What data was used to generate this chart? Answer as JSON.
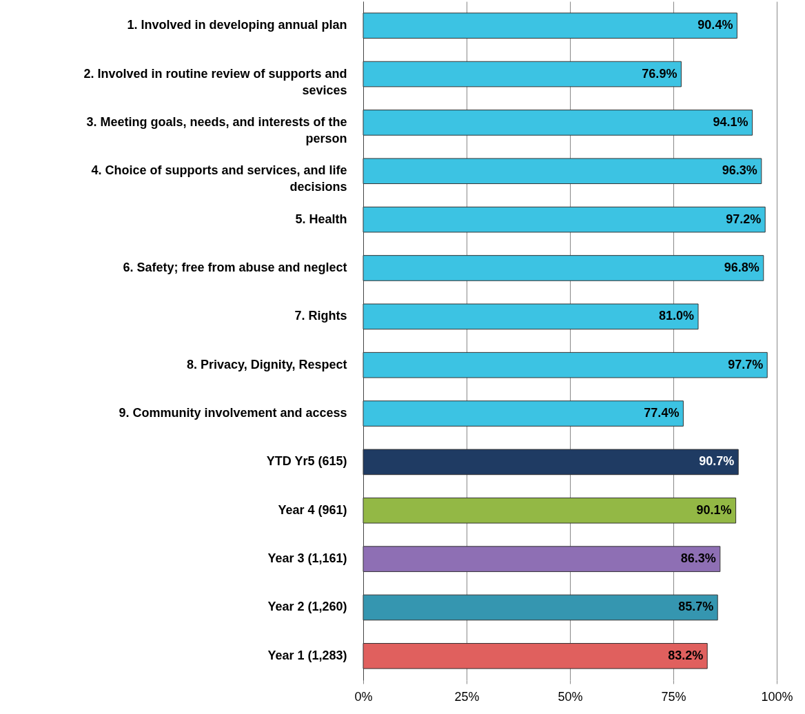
{
  "chart_data": {
    "type": "bar",
    "orientation": "horizontal",
    "categories": [
      "1. Involved in developing annual plan",
      "2. Involved in routine review of supports and sevices",
      "3. Meeting goals, needs, and interests of the person",
      "4. Choice of supports and services, and life decisions",
      "5. Health",
      "6. Safety; free from abuse and neglect",
      "7. Rights",
      "8. Privacy, Dignity, Respect",
      "9. Community involvement and access",
      "YTD Yr5 (615)",
      "Year 4 (961)",
      "Year 3 (1,161)",
      "Year 2 (1,260)",
      "Year 1 (1,283)"
    ],
    "values": [
      90.4,
      76.9,
      94.1,
      96.3,
      97.2,
      96.8,
      81.0,
      97.7,
      77.4,
      90.7,
      90.1,
      86.3,
      85.7,
      83.2
    ],
    "value_labels": [
      "90.4%",
      "76.9%",
      "94.1%",
      "96.3%",
      "97.2%",
      "96.8%",
      "81.0%",
      "97.7%",
      "77.4%",
      "90.7%",
      "90.1%",
      "86.3%",
      "85.7%",
      "83.2%"
    ],
    "colors": [
      "#3cc3e3",
      "#3cc3e3",
      "#3cc3e3",
      "#3cc3e3",
      "#3cc3e3",
      "#3cc3e3",
      "#3cc3e3",
      "#3cc3e3",
      "#3cc3e3",
      "#1f3b63",
      "#93b845",
      "#8e6fb4",
      "#3596b0",
      "#e0605e"
    ],
    "xlim": [
      0,
      100
    ],
    "xticks": [
      {
        "value": 0,
        "label": "0%"
      },
      {
        "value": 25,
        "label": "25%"
      },
      {
        "value": 50,
        "label": "50%"
      },
      {
        "value": 75,
        "label": "75%"
      },
      {
        "value": 100,
        "label": "100%"
      }
    ],
    "grid": "x"
  }
}
